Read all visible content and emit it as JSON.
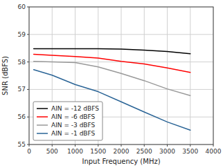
{
  "chart_data": {
    "type": "line",
    "xlabel": "Input Frequency (MHz)",
    "ylabel": "SNR (dBFS)",
    "x": [
      100,
      500,
      1000,
      1500,
      2000,
      2500,
      3000,
      3500
    ],
    "series": [
      {
        "name": "AIN = -12 dBFS",
        "color": "#000000",
        "values": [
          58.48,
          58.48,
          58.48,
          58.48,
          58.47,
          58.43,
          58.38,
          58.3
        ]
      },
      {
        "name": "AIN = -6 dBFS",
        "color": "#ff0000",
        "values": [
          58.28,
          58.24,
          58.2,
          58.14,
          58.02,
          57.93,
          57.78,
          57.62
        ]
      },
      {
        "name": "AIN = -3 dBFS",
        "color": "#999999",
        "values": [
          58.02,
          58.0,
          57.98,
          57.82,
          57.58,
          57.32,
          57.02,
          56.78
        ]
      },
      {
        "name": "AIN = -1 dBFS",
        "color": "#2a6496",
        "values": [
          57.72,
          57.52,
          57.18,
          56.92,
          56.55,
          56.18,
          55.82,
          55.52
        ]
      }
    ],
    "xlim": [
      0,
      4000
    ],
    "ylim": [
      55,
      60
    ],
    "xticks": [
      0,
      500,
      1000,
      1500,
      2000,
      2500,
      3000,
      3500,
      4000
    ],
    "yticks": [
      55,
      56,
      57,
      58,
      59,
      60
    ],
    "grid": true,
    "legend": "lower left"
  }
}
